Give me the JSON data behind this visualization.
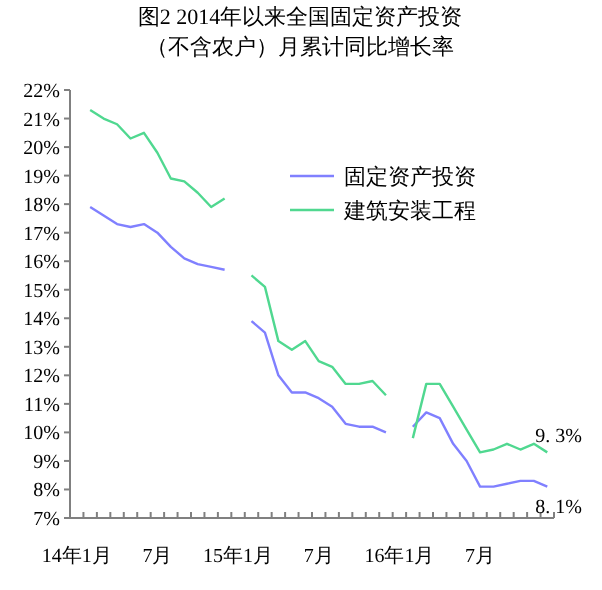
{
  "chart_data": {
    "type": "line",
    "title": "图2 2014年以来全国固定资产投资",
    "subtitle": "（不含农户）月累计同比增长率",
    "categories": [
      "14年1月",
      null,
      null,
      null,
      null,
      null,
      "7月",
      null,
      null,
      null,
      null,
      null,
      "15年1月",
      null,
      null,
      null,
      null,
      null,
      "7月",
      null,
      null,
      null,
      null,
      null,
      "16年1月",
      null,
      null,
      null,
      null,
      null,
      "7月",
      null,
      null,
      null,
      null,
      null
    ],
    "series": [
      {
        "name": "固定资产投资",
        "color": "#8080ff",
        "values": [
          null,
          17.9,
          17.6,
          17.3,
          17.2,
          17.3,
          17.0,
          16.5,
          16.1,
          15.9,
          15.8,
          15.7,
          null,
          13.9,
          13.5,
          12.0,
          11.4,
          11.4,
          11.2,
          10.9,
          10.3,
          10.2,
          10.2,
          10.0,
          null,
          10.2,
          10.7,
          10.5,
          9.6,
          9.0,
          8.1,
          8.1,
          8.2,
          8.3,
          8.3,
          8.1
        ],
        "value_labels": [
          null,
          null,
          null,
          null,
          null,
          null,
          null,
          null,
          null,
          null,
          null,
          null,
          null,
          null,
          null,
          null,
          null,
          null,
          null,
          null,
          null,
          null,
          null,
          null,
          null,
          null,
          null,
          null,
          null,
          null,
          null,
          null,
          null,
          null,
          null,
          "8. 1%"
        ]
      },
      {
        "name": "建筑安装工程",
        "color": "#50d890",
        "values": [
          null,
          21.3,
          21.0,
          20.8,
          20.3,
          20.5,
          19.8,
          18.9,
          18.8,
          18.4,
          17.9,
          18.2,
          null,
          15.5,
          15.1,
          13.2,
          12.9,
          13.2,
          12.5,
          12.3,
          11.7,
          11.7,
          11.8,
          11.3,
          null,
          9.8,
          11.7,
          11.7,
          10.9,
          10.1,
          9.3,
          9.4,
          9.6,
          9.4,
          9.6,
          9.3
        ],
        "value_labels": [
          null,
          null,
          null,
          null,
          null,
          null,
          null,
          null,
          null,
          null,
          null,
          null,
          null,
          null,
          null,
          null,
          null,
          null,
          null,
          null,
          null,
          null,
          null,
          null,
          null,
          null,
          null,
          null,
          null,
          null,
          null,
          null,
          null,
          null,
          null,
          "9. 3%"
        ]
      }
    ],
    "ylim": [
      7,
      22
    ],
    "yticks": [
      {
        "value": 7,
        "label": "7%"
      },
      {
        "value": 8,
        "label": "8%"
      },
      {
        "value": 9,
        "label": "9%"
      },
      {
        "value": 10,
        "label": "10%"
      },
      {
        "value": 11,
        "label": "11%"
      },
      {
        "value": 12,
        "label": "12%"
      },
      {
        "value": 13,
        "label": "13%"
      },
      {
        "value": 14,
        "label": "14%"
      },
      {
        "value": 15,
        "label": "15%"
      },
      {
        "value": 16,
        "label": "16%"
      },
      {
        "value": 17,
        "label": "17%"
      },
      {
        "value": 18,
        "label": "18%"
      },
      {
        "value": 19,
        "label": "19%"
      },
      {
        "value": 20,
        "label": "20%"
      },
      {
        "value": 21,
        "label": "21%"
      },
      {
        "value": 22,
        "label": "22%"
      }
    ],
    "legend": "top right",
    "grid": false,
    "marker": "none",
    "line_style": "solid"
  }
}
